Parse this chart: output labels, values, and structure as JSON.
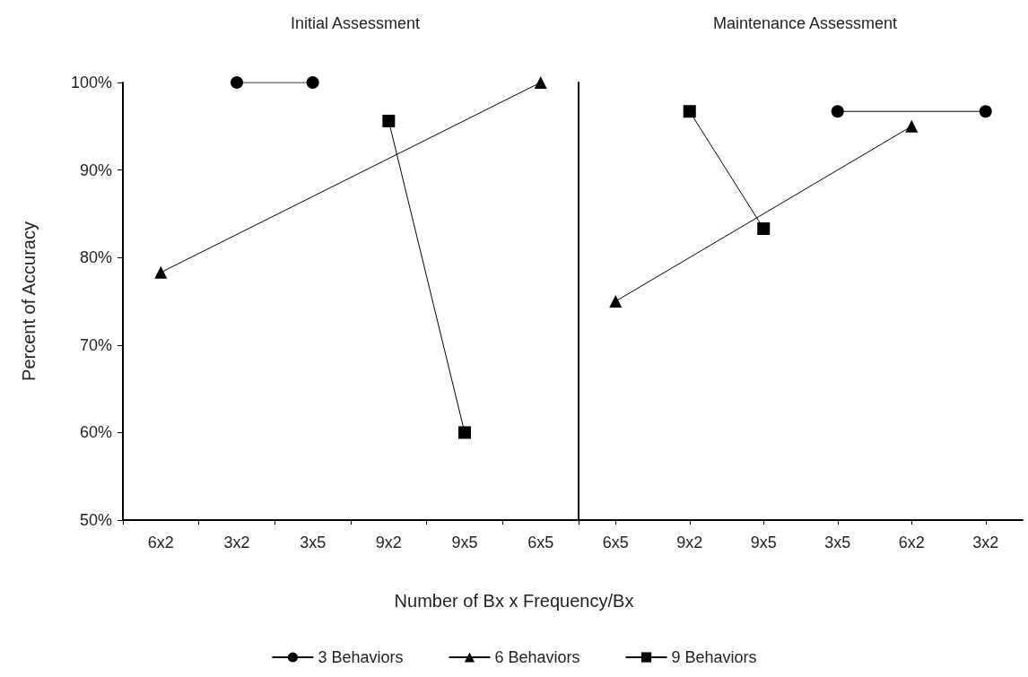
{
  "chart_data": [
    {
      "type": "line",
      "title": "Initial Assessment",
      "xlabel": "Number of Bx x Frequency/Bx",
      "ylabel": "Percent of Accuracy",
      "categories": [
        "6x2",
        "3x2",
        "3x5",
        "9x2",
        "9x5",
        "6x5"
      ],
      "series": [
        {
          "name": "3 Behaviors",
          "color": "#000000",
          "marker": "circle",
          "x": [
            "3x2",
            "3x5"
          ],
          "values": [
            100,
            100
          ]
        },
        {
          "name": "6 Behaviors",
          "color": "#000000",
          "marker": "triangle",
          "x": [
            "6x2",
            "6x5"
          ],
          "values": [
            78.3,
            100
          ]
        },
        {
          "name": "9 Behaviors",
          "color": "#000000",
          "marker": "square",
          "x": [
            "9x2",
            "9x5"
          ],
          "values": [
            95.6,
            60
          ]
        }
      ],
      "ylim": [
        50,
        100
      ],
      "yticks": [
        {
          "value": 50,
          "label": "50%"
        },
        {
          "value": 60,
          "label": "60%"
        },
        {
          "value": 70,
          "label": "70%"
        },
        {
          "value": 80,
          "label": "80%"
        },
        {
          "value": 90,
          "label": "90%"
        },
        {
          "value": 100,
          "label": "100%"
        }
      ],
      "grid": false,
      "legend": "bottom",
      "line_style": "solid"
    },
    {
      "type": "line",
      "title": "Maintenance Assessment",
      "categories": [
        "6x5",
        "9x2",
        "9x5",
        "3x5",
        "6x2",
        "3x2"
      ],
      "series": [
        {
          "color": "#000000",
          "marker": "circle",
          "x": [
            "3x5",
            "3x2"
          ],
          "values": [
            96.7,
            96.7
          ]
        },
        {
          "color": "#000000",
          "marker": "triangle",
          "x": [
            "6x5",
            "6x2"
          ],
          "values": [
            75,
            95
          ]
        },
        {
          "color": "#000000",
          "marker": "square",
          "x": [
            "9x2",
            "9x5"
          ],
          "values": [
            96.7,
            83.3
          ]
        }
      ],
      "ylim": [
        50,
        100
      ],
      "tick_labels": "x",
      "grid": false,
      "line_style": "solid"
    }
  ]
}
